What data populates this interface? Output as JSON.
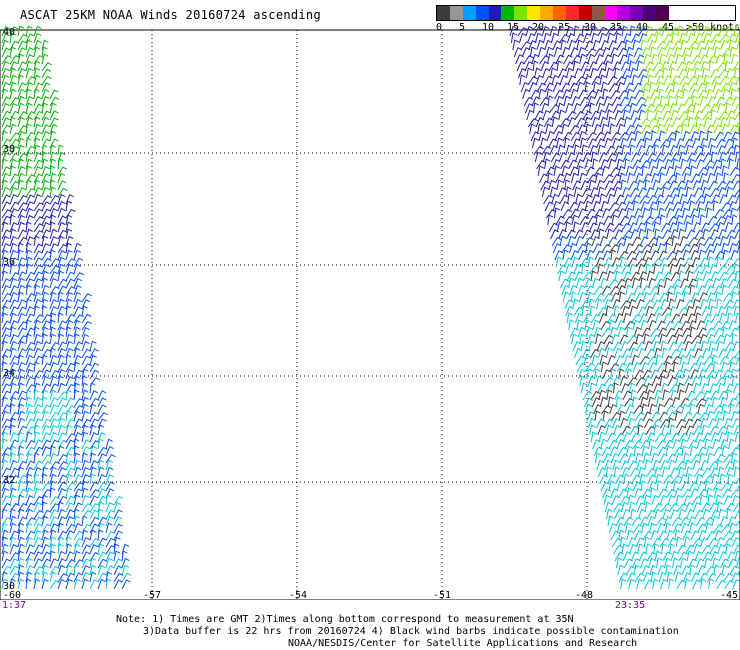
{
  "title": "ASCAT 25KM NOAA Winds 20160724 ascending",
  "legend": {
    "colors": [
      "#3c3c3c",
      "#969696",
      "#00a0ff",
      "#0050ff",
      "#1e1eb4",
      "#00b400",
      "#78e600",
      "#ffe600",
      "#ffaa00",
      "#ff6400",
      "#ff2828",
      "#c80000",
      "#8c5a46",
      "#ff00ff",
      "#b400dc",
      "#7800b4",
      "#500078",
      "#500050"
    ],
    "labels": [
      "0",
      "5",
      "10",
      "15",
      "20",
      "25",
      "30",
      "35",
      "40",
      "45",
      ">50 knots"
    ],
    "contamination_color": "#000000"
  },
  "axes": {
    "lat_labels": [
      "40",
      "38",
      "36",
      "34",
      "32",
      "30"
    ],
    "lon_labels": [
      "-60",
      "-57",
      "-54",
      "-51",
      "-48",
      "-45"
    ]
  },
  "times": {
    "left": "1:37",
    "right": "23:35"
  },
  "notes": {
    "line1": "Note: 1) Times are GMT 2)Times along bottom correspond to measurement at 35N",
    "line2": "3)Data buffer is 22 hrs from 20160724 4) Black wind barbs indicate possible contamination",
    "line3": "NOAA/NESDIS/Center for Satellite Applications and Research"
  }
}
